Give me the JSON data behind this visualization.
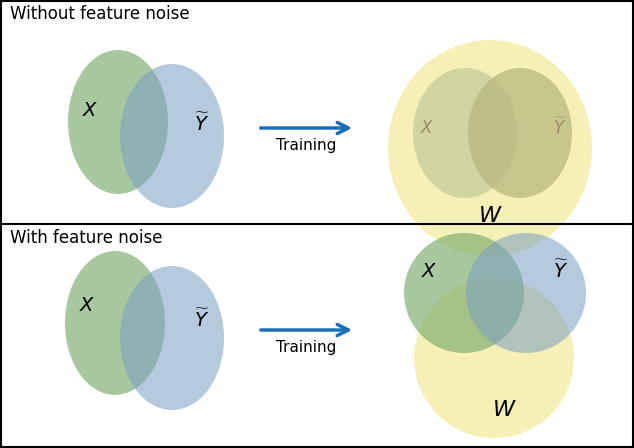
{
  "title_top": "Without feature noise",
  "title_bottom": "With feature noise",
  "arrow_label": "Training",
  "green_color": "#7aab6e",
  "blue_color": "#7b9fc4",
  "yellow_color": "#f0e890",
  "green_alpha": 0.65,
  "blue_alpha": 0.55,
  "yellow_alpha": 0.65,
  "faded_green_color": "#c8cf9a",
  "faded_blue_color": "#b8b880",
  "red_color": "#cc0000",
  "arrow_color": "#1a6fbd",
  "text_color_black": "#000000",
  "text_color_faded": "#9a8a6a",
  "border_color": "#000000"
}
